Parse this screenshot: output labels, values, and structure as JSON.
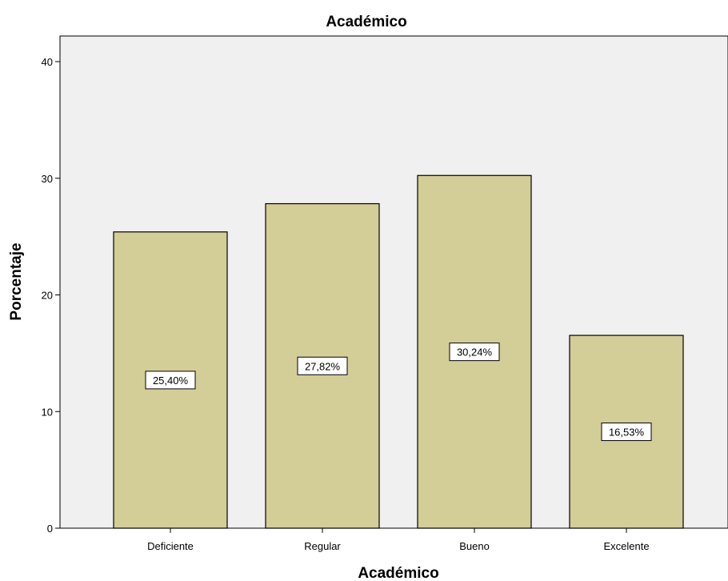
{
  "chart_data": {
    "type": "bar",
    "title": "Académico",
    "xlabel": "Académico",
    "ylabel": "Porcentaje",
    "categories": [
      "Deficiente",
      "Regular",
      "Bueno",
      "Excelente"
    ],
    "values": [
      25.4,
      27.82,
      30.24,
      16.53
    ],
    "data_labels": [
      "25,40%",
      "27,82%",
      "30,24%",
      "16,53%"
    ],
    "ylim": [
      0,
      40
    ],
    "yticks": [
      0,
      10,
      20,
      30,
      40
    ],
    "ytick_labels": [
      "0",
      "10",
      "20",
      "30",
      "40"
    ],
    "grid": false,
    "colors": {
      "bar_fill": "#d3cd98",
      "plot_background": "#f0f0f0",
      "bar_stroke": "#000000"
    }
  }
}
